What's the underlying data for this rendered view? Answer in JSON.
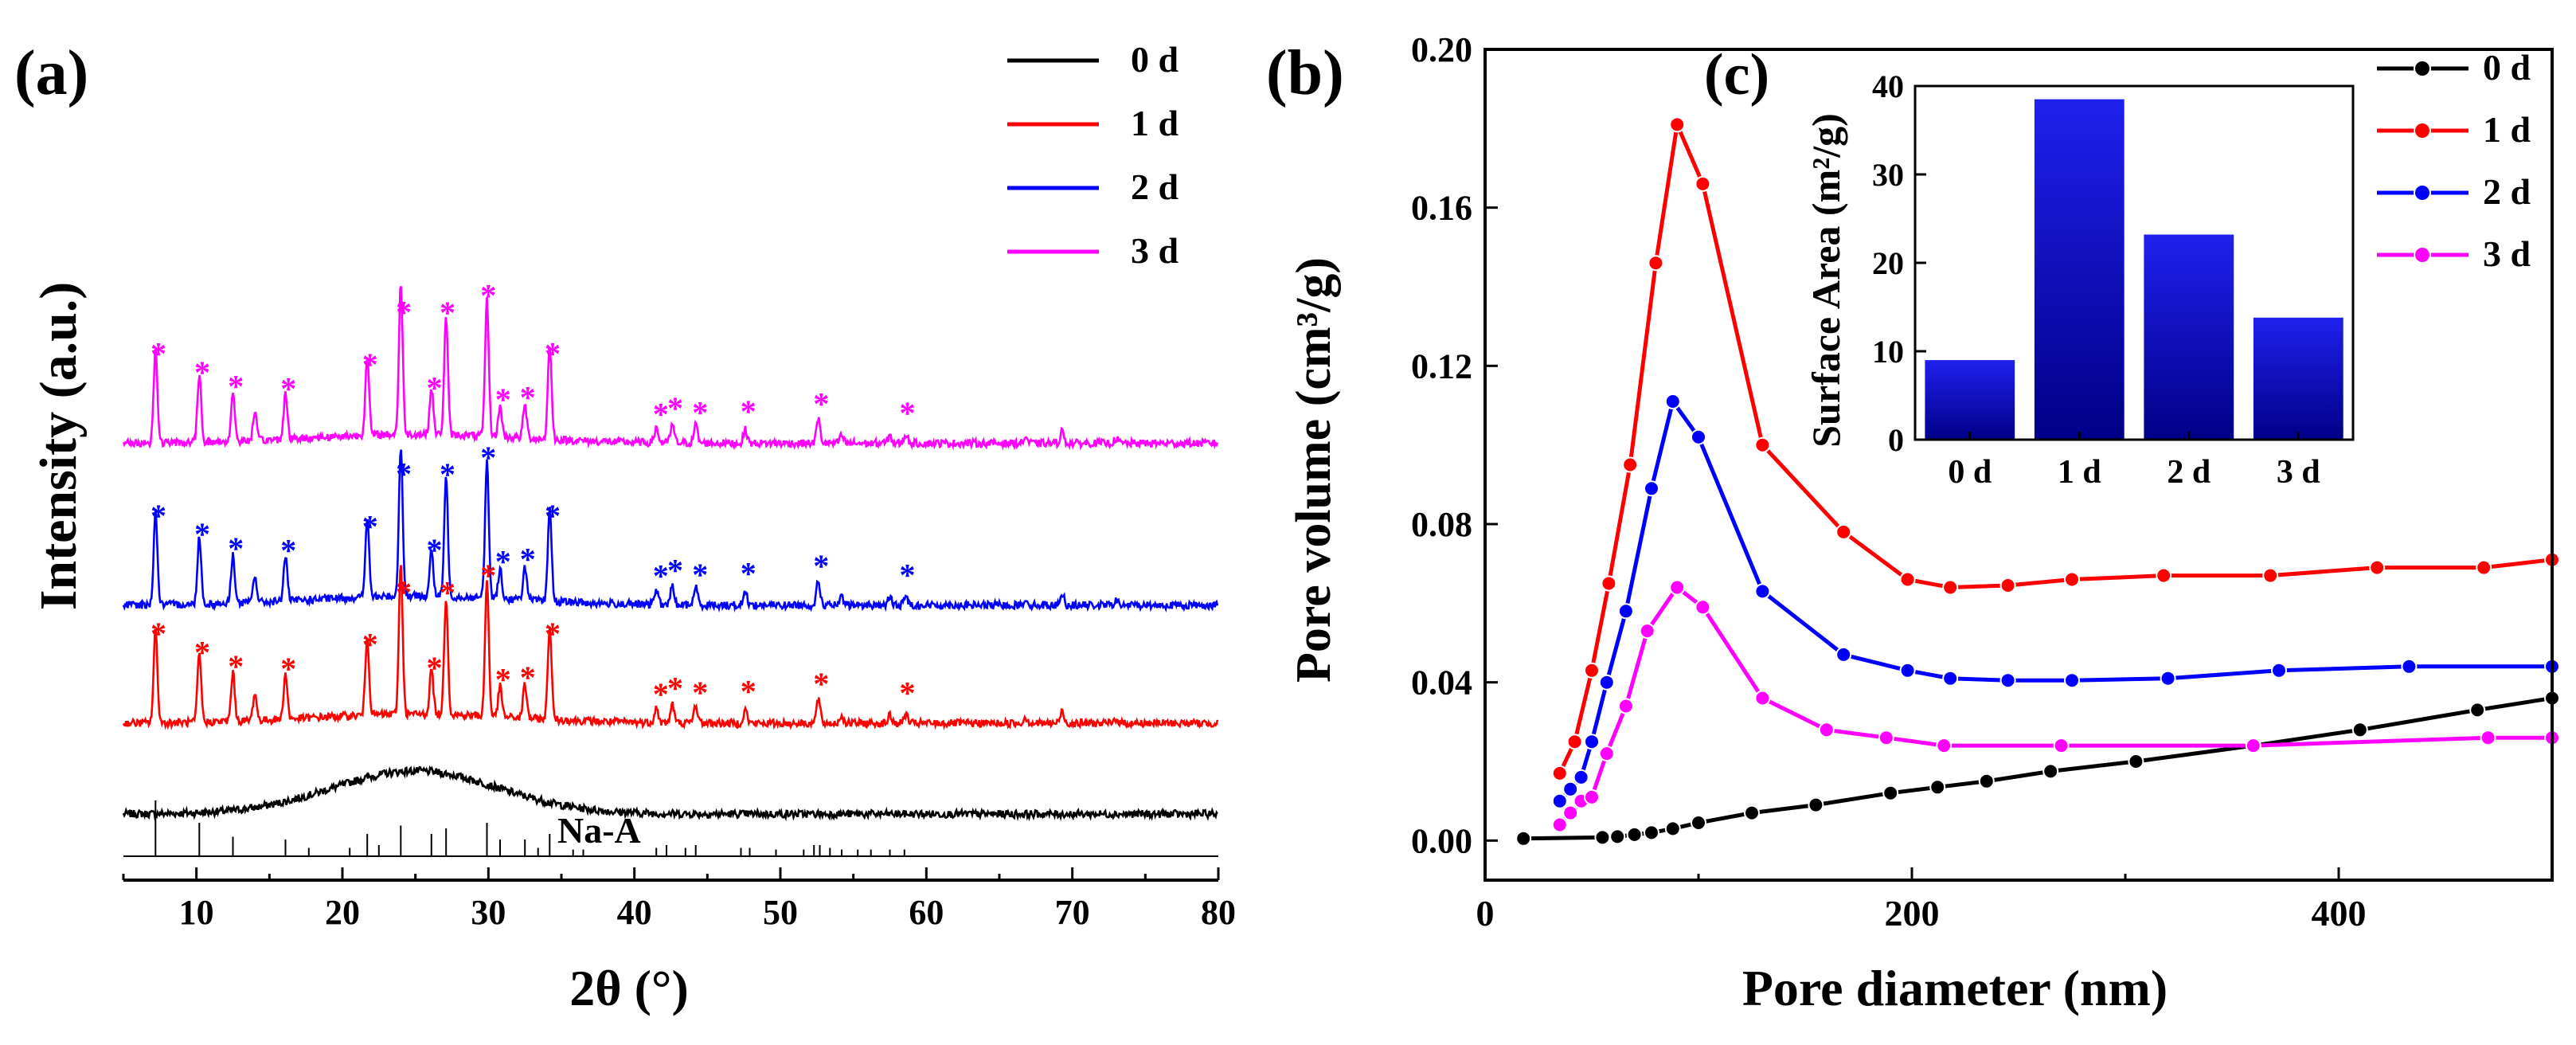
{
  "chart_data": [
    {
      "panel_label": "(a)",
      "type": "line",
      "xlabel": "2θ (°)",
      "ylabel": "Intensity (a.u.)",
      "xlim": [
        5,
        80
      ],
      "xticks": [
        "10",
        "20",
        "30",
        "40",
        "50",
        "60",
        "70",
        "80"
      ],
      "reference_label": "Na-A",
      "reference_peaks": [
        {
          "x": 7.2,
          "h": 1.0
        },
        {
          "x": 10.2,
          "h": 0.6
        },
        {
          "x": 12.5,
          "h": 0.35
        },
        {
          "x": 16.1,
          "h": 0.3
        },
        {
          "x": 17.7,
          "h": 0.15
        },
        {
          "x": 20.5,
          "h": 0.15
        },
        {
          "x": 21.7,
          "h": 0.4
        },
        {
          "x": 22.5,
          "h": 0.2
        },
        {
          "x": 24.0,
          "h": 0.55
        },
        {
          "x": 26.1,
          "h": 0.4
        },
        {
          "x": 27.1,
          "h": 0.5
        },
        {
          "x": 29.9,
          "h": 0.6
        },
        {
          "x": 30.8,
          "h": 0.3
        },
        {
          "x": 32.5,
          "h": 0.3
        },
        {
          "x": 33.4,
          "h": 0.15
        },
        {
          "x": 34.2,
          "h": 0.4
        },
        {
          "x": 35.8,
          "h": 0.12
        },
        {
          "x": 36.5,
          "h": 0.12
        },
        {
          "x": 41.5,
          "h": 0.15
        },
        {
          "x": 42.2,
          "h": 0.2
        },
        {
          "x": 43.5,
          "h": 0.15
        },
        {
          "x": 44.2,
          "h": 0.2
        },
        {
          "x": 47.3,
          "h": 0.15
        },
        {
          "x": 47.9,
          "h": 0.15
        },
        {
          "x": 49.7,
          "h": 0.12
        },
        {
          "x": 51.6,
          "h": 0.12
        },
        {
          "x": 52.3,
          "h": 0.2
        },
        {
          "x": 52.7,
          "h": 0.2
        },
        {
          "x": 53.4,
          "h": 0.15
        },
        {
          "x": 54.2,
          "h": 0.12
        },
        {
          "x": 55.3,
          "h": 0.12
        },
        {
          "x": 56.2,
          "h": 0.12
        },
        {
          "x": 57.5,
          "h": 0.12
        },
        {
          "x": 58.5,
          "h": 0.12
        }
      ],
      "crystalline_peaks": [
        {
          "x": 7.2,
          "h": 0.62
        },
        {
          "x": 10.2,
          "h": 0.45
        },
        {
          "x": 12.5,
          "h": 0.32
        },
        {
          "x": 14.0,
          "h": 0.18
        },
        {
          "x": 16.1,
          "h": 0.3
        },
        {
          "x": 21.7,
          "h": 0.52
        },
        {
          "x": 24.0,
          "h": 1.0
        },
        {
          "x": 26.1,
          "h": 0.3
        },
        {
          "x": 27.1,
          "h": 0.78
        },
        {
          "x": 29.9,
          "h": 0.9
        },
        {
          "x": 30.8,
          "h": 0.2
        },
        {
          "x": 32.5,
          "h": 0.22
        },
        {
          "x": 34.2,
          "h": 0.62
        },
        {
          "x": 41.5,
          "h": 0.1
        },
        {
          "x": 42.6,
          "h": 0.12
        },
        {
          "x": 44.2,
          "h": 0.12
        },
        {
          "x": 47.6,
          "h": 0.09
        },
        {
          "x": 52.6,
          "h": 0.16
        },
        {
          "x": 54.2,
          "h": 0.05
        },
        {
          "x": 57.5,
          "h": 0.05
        },
        {
          "x": 58.6,
          "h": 0.06
        },
        {
          "x": 66.8,
          "h": 0.04
        },
        {
          "x": 69.3,
          "h": 0.08
        },
        {
          "x": 73.0,
          "h": 0.03
        }
      ],
      "star_positions": [
        7.4,
        10.4,
        12.7,
        16.3,
        21.9,
        24.2,
        26.3,
        27.2,
        30.0,
        31.0,
        32.7,
        34.4,
        41.8,
        42.8,
        44.5,
        47.8,
        52.8,
        58.7
      ],
      "series": [
        {
          "name": "0 d",
          "color": "#000000",
          "baseline": 0.0,
          "scale": 0.0,
          "amorphous": 0.3
        },
        {
          "name": "1 d",
          "color": "#ff0000",
          "baseline": 0.6,
          "scale": 1.0,
          "amorphous": 0.0
        },
        {
          "name": "2 d",
          "color": "#0000ff",
          "baseline": 1.38,
          "scale": 1.0,
          "amorphous": 0.0
        },
        {
          "name": "3 d",
          "color": "#ff00ff",
          "baseline": 2.45,
          "scale": 1.0,
          "amorphous": 0.0
        }
      ]
    },
    {
      "panel_label": "(b)",
      "type": "line",
      "xlabel": "Pore diameter (nm)",
      "ylabel": "Pore volume (cm³/g)",
      "xlim": [
        0,
        500
      ],
      "ylim": [
        -0.01,
        0.2
      ],
      "xticks": [
        0,
        200,
        400
      ],
      "yticks": [
        "0.00",
        "0.04",
        "0.08",
        "0.12",
        "0.16",
        "0.20"
      ],
      "series": [
        {
          "name": "0 d",
          "color": "#000000",
          "x": [
            18,
            55,
            62,
            70,
            78,
            88,
            100,
            125,
            155,
            190,
            212,
            235,
            265,
            305,
            360,
            410,
            465,
            500
          ],
          "y": [
            0.0005,
            0.0008,
            0.001,
            0.0015,
            0.002,
            0.003,
            0.0045,
            0.007,
            0.009,
            0.012,
            0.0135,
            0.015,
            0.0175,
            0.02,
            0.024,
            0.028,
            0.033,
            0.036
          ]
        },
        {
          "name": "1 d",
          "color": "#ff0000",
          "x": [
            35,
            42,
            50,
            58,
            68,
            80,
            90,
            102,
            130,
            168,
            198,
            218,
            245,
            275,
            318,
            368,
            418,
            468,
            500
          ],
          "y": [
            0.017,
            0.025,
            0.043,
            0.065,
            0.095,
            0.146,
            0.181,
            0.166,
            0.1,
            0.078,
            0.066,
            0.064,
            0.0645,
            0.066,
            0.067,
            0.067,
            0.069,
            0.069,
            0.071
          ]
        },
        {
          "name": "2 d",
          "color": "#0000ff",
          "x": [
            35,
            40,
            45,
            50,
            57,
            66,
            78,
            88,
            100,
            130,
            168,
            198,
            218,
            245,
            275,
            320,
            372,
            433,
            500
          ],
          "y": [
            0.01,
            0.013,
            0.016,
            0.025,
            0.04,
            0.058,
            0.089,
            0.111,
            0.102,
            0.063,
            0.047,
            0.043,
            0.041,
            0.0405,
            0.0405,
            0.041,
            0.043,
            0.044,
            0.044
          ]
        },
        {
          "name": "3 d",
          "color": "#ff00ff",
          "x": [
            35,
            40,
            45,
            50,
            57,
            66,
            76,
            90,
            102,
            130,
            160,
            188,
            215,
            270,
            360,
            470,
            500
          ],
          "y": [
            0.004,
            0.007,
            0.01,
            0.011,
            0.022,
            0.034,
            0.053,
            0.064,
            0.059,
            0.036,
            0.028,
            0.026,
            0.024,
            0.024,
            0.024,
            0.026,
            0.026
          ]
        }
      ]
    },
    {
      "panel_label": "(c)",
      "type": "bar",
      "title": "",
      "ylabel": "Surface Area (m²/g)",
      "categories": [
        "0 d",
        "1 d",
        "2 d",
        "3 d"
      ],
      "values": [
        9,
        38.5,
        23.2,
        13.8
      ],
      "ylim": [
        0,
        40
      ],
      "yticks": [
        "0",
        "10",
        "20",
        "30",
        "40"
      ]
    }
  ]
}
